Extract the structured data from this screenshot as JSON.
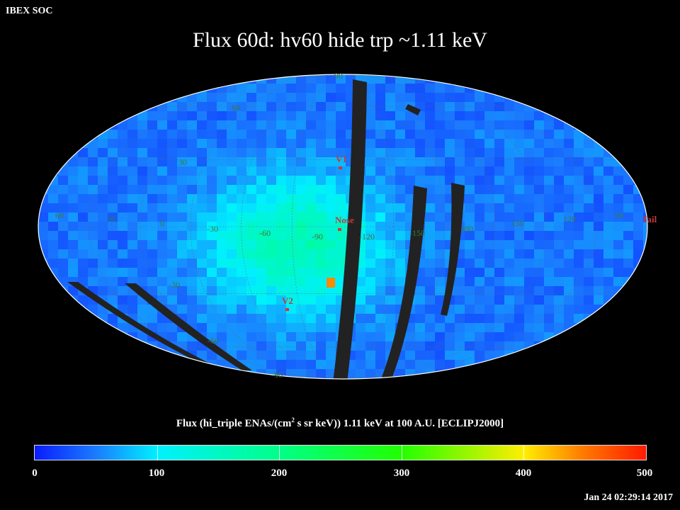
{
  "header": {
    "org": "IBEX SOC",
    "title": "Flux   60d: hv60 hide trp ~1.11 keV"
  },
  "map": {
    "type": "heatmap",
    "projection": "Mollweide (ecliptic)",
    "center_longitude_label": "Nose",
    "markers": [
      {
        "label": "V1"
      },
      {
        "label": "Nose"
      },
      {
        "label": "V2"
      },
      {
        "label": "Tail"
      }
    ],
    "longitude_labels": [
      "60",
      "30",
      "0",
      "-30",
      "-60",
      "-90",
      "-120",
      "-150",
      "180",
      "150",
      "120",
      "90"
    ],
    "latitude_labels": [
      "90",
      "60",
      "30",
      "-30",
      "-60",
      "-90"
    ],
    "colors": {
      "low": "#0a1cff",
      "mid": "#00f0ff",
      "high_mid": "#22ff00",
      "high": "#ff1a00",
      "gap": "#222222"
    }
  },
  "colorbar": {
    "title_pre": "Flux (hi_triple ENAs/(cm",
    "title_sup": "2",
    "title_post": " s sr keV))  1.11 keV at 100 A.U. [ECLIPJ2000]",
    "min": 0,
    "max": 500,
    "tick_labels": [
      "0",
      "100",
      "200",
      "300",
      "400",
      "500"
    ]
  },
  "footer": {
    "timestamp": "Jan 24 02:29:14 2017"
  }
}
